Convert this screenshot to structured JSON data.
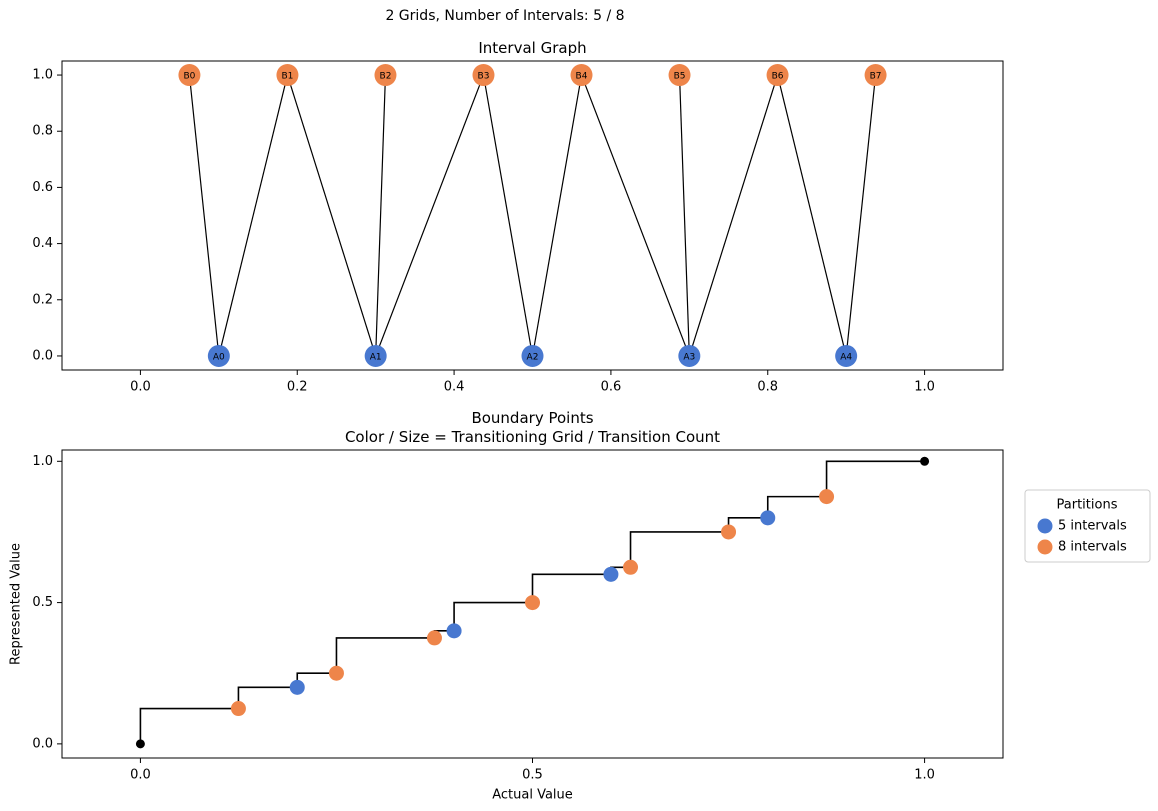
{
  "title": "2 Grids, Number of Intervals: 5 / 8",
  "chart_data": [
    {
      "type": "graph",
      "title": "Interval Graph",
      "xlim": [
        -0.1,
        1.1
      ],
      "ylim": [
        -0.05,
        1.05
      ],
      "xticks": [
        {
          "value": 0,
          "label": "0.0"
        },
        0.2,
        0.4,
        0.6,
        0.8,
        {
          "value": 1,
          "label": "1.0"
        }
      ],
      "yticks": [
        {
          "value": 0,
          "label": "0.0"
        },
        0.2,
        0.4,
        0.6,
        0.8,
        {
          "value": 1,
          "label": "1.0"
        }
      ],
      "series": [
        {
          "color": "#4878d0",
          "labels": [
            "A0",
            "A1",
            "A2",
            "A3",
            "A4"
          ],
          "x": [
            0.1,
            0.3,
            0.5,
            0.7,
            0.9
          ],
          "values": [
            0,
            0,
            0,
            0,
            0
          ]
        },
        {
          "color": "#ee854a",
          "labels": [
            "B0",
            "B1",
            "B2",
            "B3",
            "B4",
            "B5",
            "B6",
            "B7"
          ],
          "x": [
            0.0625,
            0.1875,
            0.3125,
            0.4375,
            0.5625,
            0.6875,
            0.8125,
            0.9375
          ],
          "values": [
            1,
            1,
            1,
            1,
            1,
            1,
            1,
            1
          ]
        }
      ],
      "edges": [
        [
          "A0",
          "B0"
        ],
        [
          "A0",
          "B1"
        ],
        [
          "A1",
          "B1"
        ],
        [
          "A1",
          "B2"
        ],
        [
          "A1",
          "B3"
        ],
        [
          "A2",
          "B3"
        ],
        [
          "A2",
          "B4"
        ],
        [
          "A3",
          "B4"
        ],
        [
          "A3",
          "B5"
        ],
        [
          "A3",
          "B6"
        ],
        [
          "A4",
          "B6"
        ],
        [
          "A4",
          "B7"
        ]
      ],
      "edge_color": "#000000"
    },
    {
      "type": "scatter",
      "title": "Boundary Points\nColor / Size = Transitioning Grid / Transition Count",
      "x_label": "Actual Value",
      "y_label": "Represented Value",
      "xlim": [
        -0.1,
        1.1
      ],
      "ylim": [
        -0.05,
        1.04
      ],
      "xticks": [
        {
          "value": 0,
          "label": "0.0"
        },
        0.5,
        {
          "value": 1,
          "label": "1.0"
        }
      ],
      "yticks": [
        {
          "value": 0,
          "label": "0.0"
        },
        0.5,
        {
          "value": 1,
          "label": "1.0"
        }
      ],
      "step_line": {
        "color": "#000000",
        "step": "pre",
        "x": [
          0,
          0.125,
          0.2,
          0.25,
          0.375,
          0.4,
          0.5,
          0.6,
          0.625,
          0.75,
          0.8,
          0.875,
          1
        ],
        "values": [
          0,
          0.125,
          0.2,
          0.25,
          0.375,
          0.4,
          0.5,
          0.6,
          0.625,
          0.75,
          0.8,
          0.875,
          1
        ]
      },
      "series": [
        {
          "name": "5 intervals",
          "color": "#4878d0",
          "x": [
            0.2,
            0.4,
            0.6,
            0.8
          ],
          "values": [
            0.2,
            0.4,
            0.6,
            0.8
          ]
        },
        {
          "name": "8 intervals",
          "color": "#ee854a",
          "x": [
            0.125,
            0.25,
            0.375,
            0.5,
            0.625,
            0.75,
            0.875
          ],
          "values": [
            0.125,
            0.25,
            0.375,
            0.5,
            0.625,
            0.75,
            0.875
          ]
        }
      ],
      "legend": {
        "title": "Partitions",
        "loc": "outside right"
      }
    }
  ]
}
